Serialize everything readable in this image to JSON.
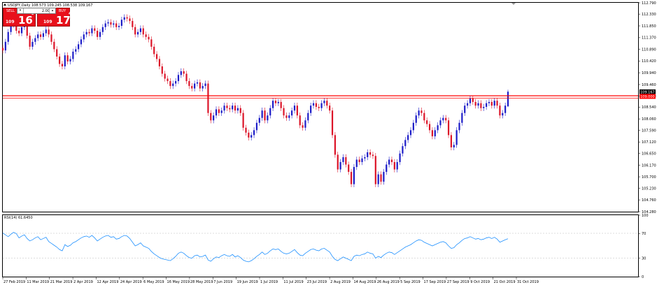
{
  "header": {
    "symbol_info": "USDJPY,Daily  108.573 109.245 108.538 109.167",
    "indicator_label": "RSI(14) 61.6450"
  },
  "trade_panel": {
    "sell_label": "SELL",
    "buy_label": "BUY",
    "lot_value": "2.00",
    "sell_price_prefix": "109",
    "sell_price_big": "16",
    "sell_price_sup": "2",
    "buy_price_prefix": "109",
    "buy_price_big": "17",
    "buy_price_sup": "4"
  },
  "price_axis": {
    "labels": [
      "112.790",
      "112.330",
      "111.850",
      "111.370",
      "110.890",
      "110.420",
      "109.940",
      "109.460",
      "108.990",
      "108.540",
      "108.060",
      "107.590",
      "107.120",
      "106.650",
      "106.170",
      "105.700",
      "105.230",
      "104.760",
      "104.280"
    ]
  },
  "price_tags": {
    "current": "109.167",
    "level": "109.000"
  },
  "rsi_axis": {
    "labels": [
      "100",
      "70",
      "30",
      "0"
    ]
  },
  "time_axis": {
    "labels": [
      "27 Feb 2019",
      "11 Mar 2019",
      "21 Mar 2019",
      "2 Apr 2019",
      "12 Apr 2019",
      "24 Apr 2019",
      "6 May 2019",
      "16 May 2019",
      "28 May 2019",
      "7 Jun 2019",
      "19 Jun 2019",
      "1 Jul 2019",
      "11 Jul 2019",
      "23 Jul 2019",
      "2 Aug 2019",
      "14 Aug 2019",
      "26 Aug 2019",
      "5 Sep 2019",
      "17 Sep 2019",
      "27 Sep 2019",
      "9 Oct 2019",
      "21 Oct 2019",
      "31 Oct 2019"
    ]
  },
  "colors": {
    "bull": "#1c1cc8",
    "bear": "#dc1428",
    "level_line": "#ff0000",
    "rsi_line": "#1e90ff",
    "grid": "#d8d8d8",
    "frame": "#000000"
  },
  "chart_data": {
    "type": "candlestick",
    "symbol": "USDJPY",
    "timeframe": "Daily",
    "last_bar": {
      "open": 108.573,
      "high": 109.245,
      "low": 108.538,
      "close": 109.167
    },
    "horizontal_level": 109.0,
    "y_range": [
      104.28,
      112.79
    ],
    "closes": [
      110.85,
      111.2,
      111.6,
      111.9,
      112.0,
      111.65,
      111.55,
      111.8,
      111.85,
      111.45,
      111.0,
      111.2,
      111.35,
      111.5,
      111.4,
      111.55,
      111.7,
      111.5,
      111.2,
      110.9,
      110.6,
      110.3,
      110.2,
      110.65,
      110.4,
      110.5,
      110.8,
      110.9,
      111.1,
      111.3,
      111.5,
      111.6,
      111.55,
      111.75,
      111.65,
      111.4,
      111.6,
      111.8,
      111.95,
      112.0,
      111.9,
      111.95,
      111.8,
      111.85,
      112.1,
      112.2,
      112.15,
      112.05,
      111.8,
      111.5,
      111.6,
      111.75,
      111.5,
      111.4,
      111.3,
      111.0,
      110.7,
      110.5,
      110.2,
      109.9,
      109.7,
      109.6,
      109.4,
      109.5,
      109.6,
      109.85,
      110.0,
      109.9,
      109.6,
      109.4,
      109.3,
      109.5,
      109.55,
      109.3,
      109.4,
      109.5,
      108.3,
      108.0,
      108.2,
      108.45,
      108.3,
      108.4,
      108.6,
      108.5,
      108.45,
      108.6,
      108.4,
      108.5,
      108.3,
      107.7,
      107.5,
      107.3,
      107.4,
      107.6,
      107.9,
      108.1,
      108.4,
      108.0,
      108.2,
      108.5,
      108.8,
      108.7,
      108.75,
      108.5,
      108.2,
      108.1,
      108.2,
      108.4,
      108.6,
      108.2,
      107.8,
      107.7,
      108.0,
      108.3,
      108.6,
      108.7,
      108.55,
      108.5,
      108.7,
      108.8,
      108.6,
      108.4,
      107.4,
      106.6,
      106.0,
      106.3,
      106.5,
      106.2,
      105.9,
      105.4,
      106.1,
      106.4,
      106.3,
      106.45,
      106.5,
      106.7,
      106.6,
      106.55,
      105.4,
      105.8,
      105.5,
      105.9,
      106.2,
      106.4,
      106.3,
      106.0,
      106.3,
      106.65,
      106.95,
      107.2,
      107.4,
      107.6,
      107.9,
      108.2,
      108.4,
      108.3,
      108.0,
      107.85,
      107.6,
      107.35,
      107.6,
      107.8,
      108.0,
      108.1,
      108.0,
      107.4,
      106.9,
      107.0,
      107.6,
      107.9,
      108.3,
      108.6,
      108.7,
      108.9,
      108.75,
      108.6,
      108.7,
      108.5,
      108.55,
      108.7,
      108.75,
      108.6,
      108.8,
      108.6,
      108.2,
      108.3,
      108.6,
      109.167
    ],
    "rsi": {
      "period": 14,
      "value": 61.645,
      "levels": [
        70,
        30
      ],
      "ylim": [
        0,
        100
      ],
      "values": [
        71,
        68,
        65,
        69,
        72,
        70,
        63,
        66,
        68,
        62,
        58,
        60,
        63,
        65,
        60,
        62,
        64,
        57,
        54,
        51,
        48,
        44,
        42,
        52,
        49,
        51,
        55,
        57,
        60,
        63,
        65,
        66,
        64,
        67,
        63,
        58,
        61,
        64,
        66,
        67,
        64,
        65,
        61,
        62,
        65,
        67,
        66,
        62,
        56,
        50,
        52,
        55,
        50,
        48,
        46,
        41,
        37,
        34,
        31,
        29,
        28,
        27,
        26,
        29,
        33,
        38,
        40,
        38,
        34,
        31,
        30,
        34,
        35,
        32,
        33,
        35,
        27,
        25,
        29,
        32,
        31,
        34,
        36,
        34,
        33,
        36,
        32,
        34,
        31,
        27,
        25,
        24,
        26,
        29,
        33,
        36,
        40,
        36,
        38,
        42,
        45,
        44,
        45,
        41,
        38,
        37,
        38,
        41,
        44,
        39,
        35,
        34,
        38,
        41,
        44,
        45,
        43,
        42,
        45,
        46,
        43,
        40,
        33,
        28,
        26,
        29,
        32,
        30,
        28,
        26,
        33,
        35,
        34,
        36,
        37,
        40,
        38,
        37,
        30,
        33,
        31,
        35,
        38,
        40,
        39,
        36,
        39,
        42,
        45,
        48,
        50,
        52,
        55,
        58,
        60,
        59,
        56,
        54,
        52,
        50,
        52,
        54,
        56,
        57,
        55,
        50,
        46,
        47,
        52,
        55,
        59,
        62,
        63,
        65,
        63,
        61,
        62,
        60,
        61,
        63,
        64,
        62,
        64,
        61,
        56,
        58,
        60,
        61.645
      ]
    }
  }
}
